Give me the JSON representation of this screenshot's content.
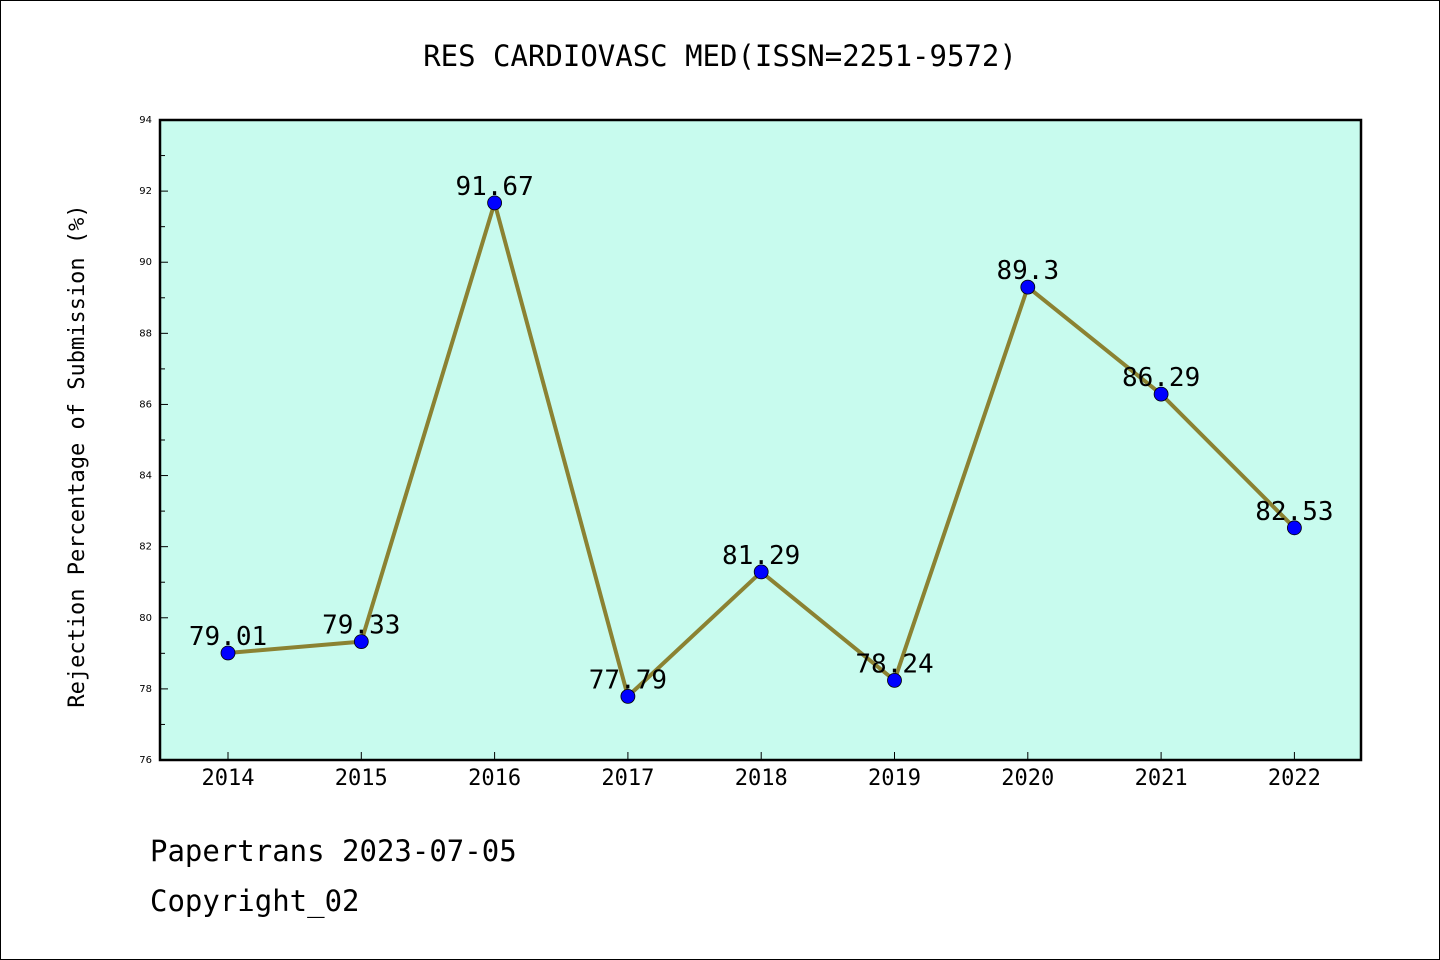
{
  "chart_data": {
    "type": "line",
    "title": "RES CARDIOVASC MED(ISSN=2251-9572)",
    "xlabel": "",
    "ylabel": "Rejection Percentage of Submission (%)",
    "categories": [
      "2014",
      "2015",
      "2016",
      "2017",
      "2018",
      "2019",
      "2020",
      "2021",
      "2022"
    ],
    "values": [
      79.01,
      79.33,
      91.67,
      77.79,
      81.29,
      78.24,
      89.3,
      86.29,
      82.53
    ],
    "data_labels": [
      "79.01",
      "79.33",
      "91.67",
      "77.79",
      "81.29",
      "78.24",
      "89.3",
      "86.29",
      "82.53"
    ],
    "ylim": [
      76,
      94
    ],
    "yticks": [
      76,
      78,
      80,
      82,
      84,
      86,
      88,
      90,
      92,
      94
    ],
    "grid": false,
    "colors": {
      "plot_background": "#c8fbee",
      "line": "#8b8232",
      "marker": "#0000ff"
    }
  },
  "footer": {
    "line1": "Papertrans 2023-07-05",
    "line2": "Copyright_02"
  }
}
